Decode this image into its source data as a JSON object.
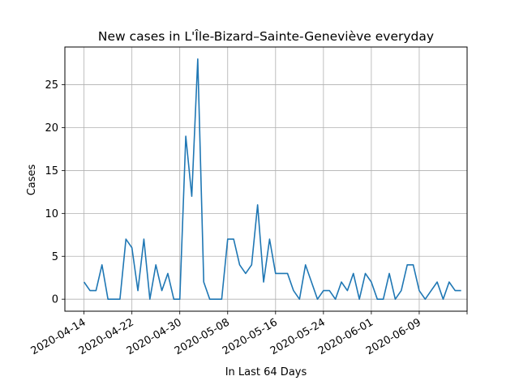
{
  "chart_data": {
    "type": "line",
    "title": "New cases in L'Île-Bizard–Sainte-Geneviève everyday",
    "xlabel": "In Last 64 Days",
    "ylabel": "Cases",
    "start_date": "2020-04-14",
    "x_tick_labels": [
      "2020-04-14",
      "2020-04-22",
      "2020-04-30",
      "2020-05-08",
      "2020-05-16",
      "2020-05-24",
      "2020-06-01",
      "2020-06-09",
      ""
    ],
    "x_tick_days": [
      0,
      8,
      16,
      24,
      32,
      40,
      48,
      56,
      64
    ],
    "xlim_days": [
      -3.2,
      64.0
    ],
    "y_ticks": [
      0,
      5,
      10,
      15,
      20,
      25
    ],
    "ylim": [
      -1.4,
      29.4
    ],
    "grid": true,
    "color": "#1f77b4",
    "series": [
      {
        "name": "Cases",
        "values": [
          2,
          1,
          1,
          4,
          0,
          0,
          0,
          7,
          6,
          1,
          7,
          0,
          4,
          1,
          3,
          0,
          0,
          19,
          12,
          28,
          2,
          0,
          0,
          0,
          7,
          7,
          4,
          3,
          4,
          11,
          2,
          7,
          3,
          3,
          3,
          1,
          0,
          4,
          2,
          0,
          1,
          1,
          0,
          2,
          1,
          3,
          0,
          3,
          2,
          0,
          0,
          3,
          0,
          1,
          4,
          4,
          1,
          0,
          1,
          2,
          0,
          2,
          1,
          1
        ]
      }
    ]
  }
}
